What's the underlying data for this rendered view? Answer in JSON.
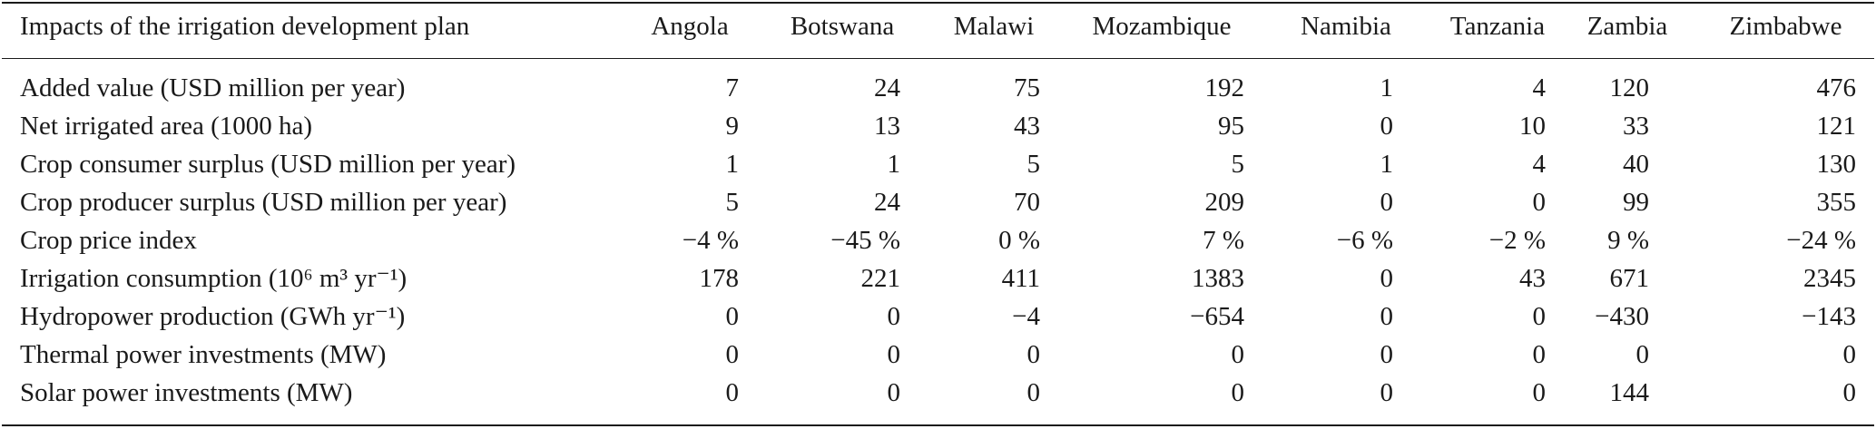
{
  "table": {
    "corner_header": "Impacts of the irrigation development plan",
    "columns": [
      "Angola",
      "Botswana",
      "Malawi",
      "Mozambique",
      "Namibia",
      "Tanzania",
      "Zambia",
      "Zimbabwe"
    ],
    "rows": [
      {
        "label": "Added value (USD million per year)",
        "values": [
          "7",
          "24",
          "75",
          "192",
          "1",
          "4",
          "120",
          "476"
        ]
      },
      {
        "label": "Net irrigated area (1000 ha)",
        "values": [
          "9",
          "13",
          "43",
          "95",
          "0",
          "10",
          "33",
          "121"
        ]
      },
      {
        "label": "Crop consumer surplus (USD million per year)",
        "values": [
          "1",
          "1",
          "5",
          "5",
          "1",
          "4",
          "40",
          "130"
        ]
      },
      {
        "label": "Crop producer surplus (USD million per year)",
        "values": [
          "5",
          "24",
          "70",
          "209",
          "0",
          "0",
          "99",
          "355"
        ]
      },
      {
        "label": "Crop price index",
        "values": [
          "−4 %",
          "−45 %",
          "0 %",
          "7 %",
          "−6 %",
          "−2 %",
          "9 %",
          "−24 %"
        ]
      },
      {
        "label": "Irrigation consumption (10⁶ m³ yr⁻¹)",
        "values": [
          "178",
          "221",
          "411",
          "1383",
          "0",
          "43",
          "671",
          "2345"
        ]
      },
      {
        "label": "Hydropower production (GWh yr⁻¹)",
        "values": [
          "0",
          "0",
          "−4",
          "−654",
          "0",
          "0",
          "−430",
          "−143"
        ]
      },
      {
        "label": "Thermal power investments (MW)",
        "values": [
          "0",
          "0",
          "0",
          "0",
          "0",
          "0",
          "0",
          "0"
        ]
      },
      {
        "label": "Solar power investments (MW)",
        "values": [
          "0",
          "0",
          "0",
          "0",
          "0",
          "0",
          "144",
          "0"
        ]
      }
    ]
  }
}
